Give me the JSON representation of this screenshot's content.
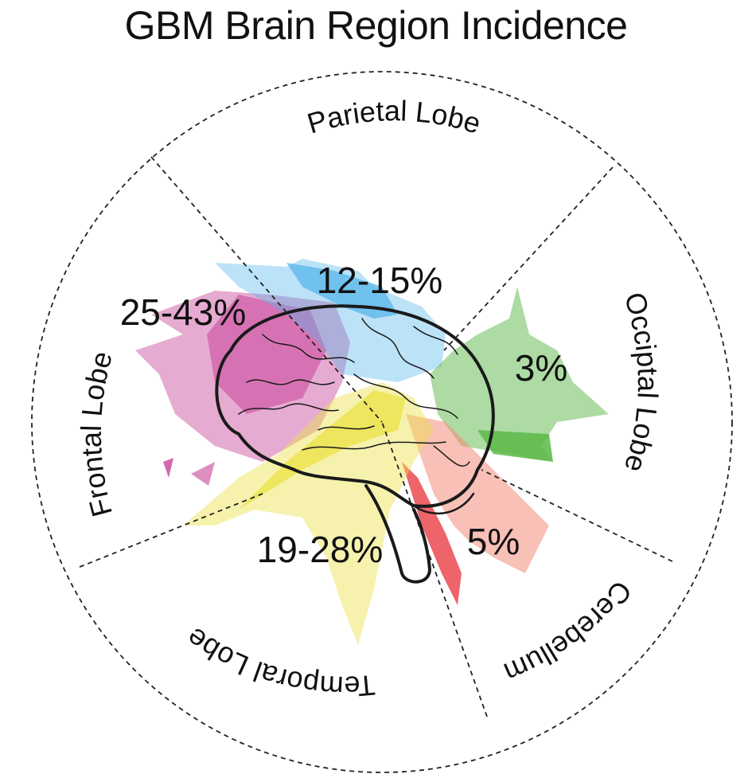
{
  "title": "GBM Brain Region Incidence",
  "regions": [
    {
      "key": "parietal",
      "name": "Parietal Lobe",
      "incidence": "12-15%",
      "color": "#57b6ea"
    },
    {
      "key": "occipital",
      "name": "Occiptal Lobe",
      "incidence": "3%",
      "color": "#5cb848"
    },
    {
      "key": "cerebellum",
      "name": "Cerebellum",
      "incidence": "5%",
      "color": "#e8524a"
    },
    {
      "key": "temporal",
      "name": "Temporal Lobe",
      "incidence": "19-28%",
      "color": "#ece24a"
    },
    {
      "key": "frontal",
      "name": "Frontal Lobe",
      "incidence": "25-43%",
      "color": "#c8449a"
    }
  ]
}
